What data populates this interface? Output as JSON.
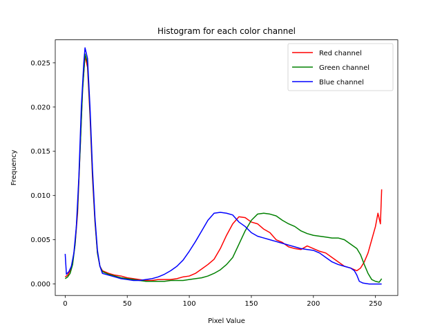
{
  "chart_data": {
    "type": "line",
    "title": "Histogram for each color channel",
    "xlabel": "Pixel Value",
    "ylabel": "Frequency",
    "xlim": [
      -8,
      268
    ],
    "ylim": [
      -0.0013,
      0.0276
    ],
    "xticks": [
      0,
      50,
      100,
      150,
      200,
      250
    ],
    "yticks": [
      0.0,
      0.005,
      0.01,
      0.015,
      0.02,
      0.025
    ],
    "ytick_labels": [
      "0.000",
      "0.005",
      "0.010",
      "0.015",
      "0.020",
      "0.025"
    ],
    "grid": false,
    "legend_position": "top-right",
    "series": [
      {
        "name": "Red channel",
        "color": "#ff0000",
        "points": [
          [
            0,
            0.0008
          ],
          [
            2,
            0.001
          ],
          [
            4,
            0.0015
          ],
          [
            6,
            0.0025
          ],
          [
            8,
            0.0045
          ],
          [
            10,
            0.008
          ],
          [
            12,
            0.015
          ],
          [
            14,
            0.022
          ],
          [
            16,
            0.0258
          ],
          [
            18,
            0.0245
          ],
          [
            20,
            0.019
          ],
          [
            22,
            0.012
          ],
          [
            24,
            0.007
          ],
          [
            26,
            0.0035
          ],
          [
            28,
            0.002
          ],
          [
            30,
            0.0015
          ],
          [
            35,
            0.0012
          ],
          [
            40,
            0.001
          ],
          [
            45,
            0.0009
          ],
          [
            50,
            0.0007
          ],
          [
            55,
            0.0006
          ],
          [
            60,
            0.0005
          ],
          [
            65,
            0.0004
          ],
          [
            70,
            0.0004
          ],
          [
            75,
            0.0005
          ],
          [
            80,
            0.0005
          ],
          [
            85,
            0.0005
          ],
          [
            90,
            0.0006
          ],
          [
            95,
            0.0008
          ],
          [
            100,
            0.0009
          ],
          [
            105,
            0.0012
          ],
          [
            110,
            0.0017
          ],
          [
            115,
            0.0022
          ],
          [
            120,
            0.0028
          ],
          [
            125,
            0.004
          ],
          [
            130,
            0.0055
          ],
          [
            135,
            0.0068
          ],
          [
            140,
            0.0076
          ],
          [
            145,
            0.0075
          ],
          [
            150,
            0.007
          ],
          [
            155,
            0.0068
          ],
          [
            160,
            0.0062
          ],
          [
            165,
            0.0058
          ],
          [
            170,
            0.005
          ],
          [
            175,
            0.0047
          ],
          [
            180,
            0.0042
          ],
          [
            185,
            0.004
          ],
          [
            190,
            0.0039
          ],
          [
            195,
            0.0043
          ],
          [
            200,
            0.004
          ],
          [
            205,
            0.0037
          ],
          [
            210,
            0.0035
          ],
          [
            215,
            0.003
          ],
          [
            220,
            0.0025
          ],
          [
            225,
            0.002
          ],
          [
            230,
            0.0018
          ],
          [
            235,
            0.0015
          ],
          [
            238,
            0.0018
          ],
          [
            241,
            0.0025
          ],
          [
            244,
            0.0035
          ],
          [
            247,
            0.005
          ],
          [
            250,
            0.0065
          ],
          [
            252,
            0.008
          ],
          [
            254,
            0.0068
          ],
          [
            255,
            0.0107
          ]
        ]
      },
      {
        "name": "Green channel",
        "color": "#008000",
        "points": [
          [
            0,
            0.0006
          ],
          [
            2,
            0.0008
          ],
          [
            4,
            0.0012
          ],
          [
            6,
            0.0022
          ],
          [
            8,
            0.0045
          ],
          [
            10,
            0.0085
          ],
          [
            12,
            0.015
          ],
          [
            14,
            0.0218
          ],
          [
            16,
            0.026
          ],
          [
            18,
            0.025
          ],
          [
            20,
            0.0195
          ],
          [
            22,
            0.0125
          ],
          [
            24,
            0.0072
          ],
          [
            26,
            0.0035
          ],
          [
            28,
            0.002
          ],
          [
            30,
            0.0014
          ],
          [
            35,
            0.0011
          ],
          [
            40,
            0.0009
          ],
          [
            45,
            0.0007
          ],
          [
            50,
            0.0006
          ],
          [
            55,
            0.0005
          ],
          [
            60,
            0.0004
          ],
          [
            65,
            0.0003
          ],
          [
            70,
            0.0003
          ],
          [
            75,
            0.0003
          ],
          [
            80,
            0.0003
          ],
          [
            85,
            0.0004
          ],
          [
            90,
            0.0004
          ],
          [
            95,
            0.0004
          ],
          [
            100,
            0.0005
          ],
          [
            105,
            0.0006
          ],
          [
            110,
            0.0007
          ],
          [
            115,
            0.0009
          ],
          [
            120,
            0.0012
          ],
          [
            125,
            0.0016
          ],
          [
            130,
            0.0022
          ],
          [
            135,
            0.003
          ],
          [
            140,
            0.0045
          ],
          [
            145,
            0.006
          ],
          [
            150,
            0.0072
          ],
          [
            155,
            0.0079
          ],
          [
            160,
            0.008
          ],
          [
            165,
            0.0079
          ],
          [
            170,
            0.0077
          ],
          [
            175,
            0.0072
          ],
          [
            180,
            0.0068
          ],
          [
            185,
            0.0065
          ],
          [
            190,
            0.006
          ],
          [
            195,
            0.0057
          ],
          [
            200,
            0.0055
          ],
          [
            205,
            0.0054
          ],
          [
            210,
            0.0053
          ],
          [
            215,
            0.0052
          ],
          [
            220,
            0.0052
          ],
          [
            225,
            0.005
          ],
          [
            230,
            0.0045
          ],
          [
            235,
            0.004
          ],
          [
            238,
            0.0033
          ],
          [
            241,
            0.0022
          ],
          [
            244,
            0.0012
          ],
          [
            247,
            0.0005
          ],
          [
            250,
            0.0003
          ],
          [
            253,
            0.0002
          ],
          [
            255,
            0.0006
          ]
        ]
      },
      {
        "name": "Blue channel",
        "color": "#0000ff",
        "points": [
          [
            0,
            0.0034
          ],
          [
            1,
            0.0011
          ],
          [
            3,
            0.0014
          ],
          [
            5,
            0.002
          ],
          [
            7,
            0.0035
          ],
          [
            9,
            0.0065
          ],
          [
            11,
            0.012
          ],
          [
            13,
            0.02
          ],
          [
            15,
            0.025
          ],
          [
            16,
            0.0267
          ],
          [
            18,
            0.0255
          ],
          [
            20,
            0.02
          ],
          [
            22,
            0.013
          ],
          [
            24,
            0.0075
          ],
          [
            26,
            0.0038
          ],
          [
            28,
            0.002
          ],
          [
            30,
            0.0012
          ],
          [
            35,
            0.001
          ],
          [
            40,
            0.0008
          ],
          [
            45,
            0.0006
          ],
          [
            50,
            0.0005
          ],
          [
            55,
            0.0004
          ],
          [
            60,
            0.0004
          ],
          [
            65,
            0.0005
          ],
          [
            70,
            0.0006
          ],
          [
            75,
            0.0008
          ],
          [
            80,
            0.0011
          ],
          [
            85,
            0.0015
          ],
          [
            90,
            0.002
          ],
          [
            95,
            0.0027
          ],
          [
            100,
            0.0037
          ],
          [
            105,
            0.0048
          ],
          [
            110,
            0.006
          ],
          [
            115,
            0.0072
          ],
          [
            120,
            0.008
          ],
          [
            125,
            0.0081
          ],
          [
            130,
            0.008
          ],
          [
            135,
            0.0078
          ],
          [
            140,
            0.007
          ],
          [
            145,
            0.0065
          ],
          [
            150,
            0.0058
          ],
          [
            155,
            0.0054
          ],
          [
            160,
            0.0052
          ],
          [
            165,
            0.005
          ],
          [
            170,
            0.0048
          ],
          [
            175,
            0.0046
          ],
          [
            180,
            0.0044
          ],
          [
            185,
            0.0042
          ],
          [
            190,
            0.004
          ],
          [
            195,
            0.0039
          ],
          [
            200,
            0.0038
          ],
          [
            205,
            0.0035
          ],
          [
            210,
            0.003
          ],
          [
            215,
            0.0025
          ],
          [
            220,
            0.0022
          ],
          [
            225,
            0.002
          ],
          [
            230,
            0.0018
          ],
          [
            233,
            0.0015
          ],
          [
            235,
            0.001
          ],
          [
            237,
            0.0003
          ],
          [
            240,
            0.0001
          ],
          [
            245,
            0.0
          ],
          [
            250,
            0.0
          ],
          [
            255,
            0.0
          ]
        ]
      }
    ]
  }
}
